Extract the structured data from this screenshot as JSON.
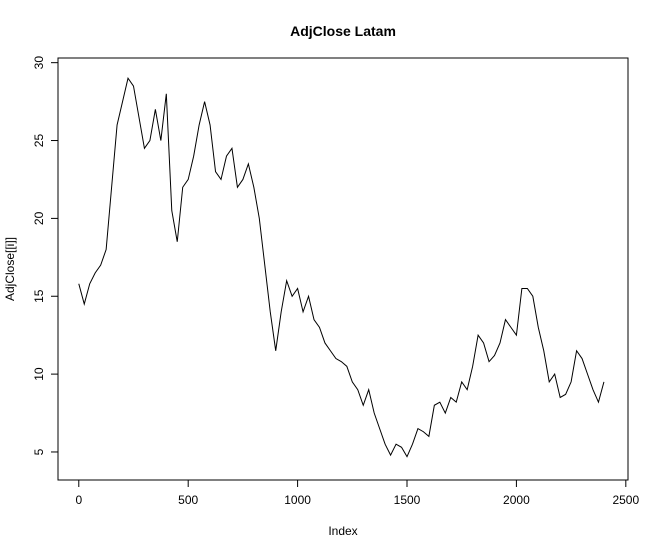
{
  "chart_data": {
    "type": "line",
    "title": "AdjClose Latam",
    "x_label": "Index",
    "y_label": "AdjClose[[i]]",
    "x": [
      0,
      25,
      50,
      75,
      100,
      125,
      150,
      175,
      200,
      225,
      250,
      275,
      300,
      325,
      350,
      375,
      400,
      425,
      450,
      475,
      500,
      525,
      550,
      575,
      600,
      625,
      650,
      675,
      700,
      725,
      750,
      775,
      800,
      825,
      850,
      875,
      900,
      925,
      950,
      975,
      1000,
      1025,
      1050,
      1075,
      1100,
      1125,
      1150,
      1175,
      1200,
      1225,
      1250,
      1275,
      1300,
      1325,
      1350,
      1375,
      1400,
      1425,
      1450,
      1475,
      1500,
      1525,
      1550,
      1575,
      1600,
      1625,
      1650,
      1675,
      1700,
      1725,
      1750,
      1775,
      1800,
      1825,
      1850,
      1875,
      1900,
      1925,
      1950,
      1975,
      2000,
      2025,
      2050,
      2075,
      2100,
      2125,
      2150,
      2175,
      2200,
      2225,
      2250,
      2275,
      2300,
      2325,
      2350,
      2375,
      2400
    ],
    "series": [
      {
        "name": "AdjClose",
        "color": "#000000",
        "values": [
          15.8,
          14.5,
          15.8,
          16.5,
          17,
          18,
          22,
          26,
          27.5,
          29,
          28.5,
          26.5,
          24.5,
          25,
          27,
          25,
          28,
          20.5,
          18.5,
          22,
          22.5,
          24,
          26,
          27.5,
          26,
          23,
          22.5,
          24,
          24.5,
          22,
          22.5,
          23.5,
          22,
          20,
          17,
          14,
          11.5,
          14,
          16,
          15,
          15.5,
          14,
          15,
          13.5,
          13,
          12,
          11.5,
          11,
          10.8,
          10.5,
          9.5,
          9,
          8,
          9,
          7.5,
          6.5,
          5.5,
          4.8,
          5.5,
          5.3,
          4.7,
          5.5,
          6.5,
          6.3,
          6,
          8,
          8.2,
          7.5,
          8.5,
          8.2,
          9.5,
          9,
          10.5,
          12.5,
          12,
          10.8,
          11.2,
          12,
          13.5,
          13,
          12.5,
          15.5,
          15.5,
          15,
          13,
          11.5,
          9.5,
          10,
          8.5,
          8.7,
          9.5,
          11.5,
          11,
          10,
          9,
          8.2,
          9.5
        ]
      }
    ],
    "xlim": [
      -95,
      2510
    ],
    "ylim": [
      3.2,
      30.3
    ],
    "xticks": [
      0,
      500,
      1000,
      1500,
      2000,
      2500
    ],
    "yticks": [
      5,
      10,
      15,
      20,
      25,
      30
    ]
  }
}
